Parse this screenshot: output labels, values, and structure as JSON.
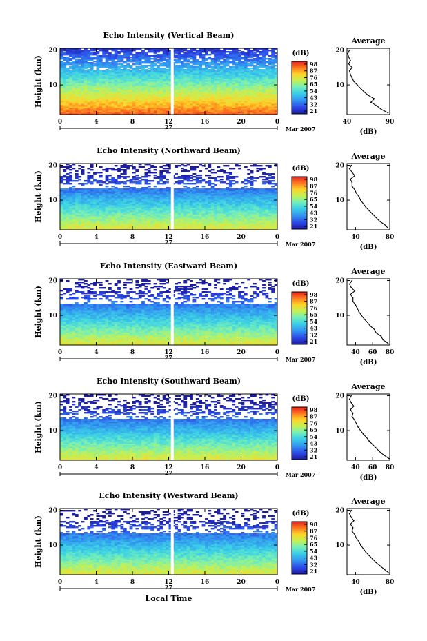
{
  "chart_data": [
    {
      "type": "heatmap",
      "title": "Echo Intensity (Vertical Beam)",
      "ylabel": "Height (km)",
      "xticks": [
        "0",
        "4",
        "8",
        "12",
        "16",
        "20",
        "0"
      ],
      "yticks": [
        "10",
        "20"
      ],
      "date_axis": {
        "day": "27",
        "month_label": "Mar 2007"
      },
      "colorbar": {
        "unit": "(dB)",
        "ticks": [
          "98",
          "87",
          "76",
          "65",
          "54",
          "43",
          "32",
          "21"
        ]
      },
      "xlim": [
        0,
        24
      ],
      "ylim": [
        1.5,
        20.5
      ],
      "gap_hour": 12.4,
      "profile": {
        "title": "Average",
        "xlabel": "(dB)",
        "xticks": [
          "40",
          "90"
        ],
        "xlim": [
          40,
          90
        ],
        "yticks": [
          "10",
          "20"
        ],
        "heights": [
          2,
          3,
          4,
          5,
          6,
          7,
          8,
          9,
          10,
          11,
          12,
          13,
          14,
          15,
          16,
          17,
          18,
          19,
          20
        ],
        "values": [
          88,
          80,
          75,
          68,
          72,
          65,
          60,
          56,
          52,
          48,
          46,
          44,
          43,
          46,
          42,
          44,
          42,
          41,
          43
        ]
      }
    },
    {
      "type": "heatmap",
      "title": "Echo Intensity (Northward Beam)",
      "ylabel": "Height (km)",
      "xticks": [
        "0",
        "4",
        "8",
        "12",
        "16",
        "20",
        "0"
      ],
      "yticks": [
        "10",
        "20"
      ],
      "date_axis": {
        "day": "27",
        "month_label": "Mar 2007"
      },
      "colorbar": {
        "unit": "(dB)",
        "ticks": [
          "98",
          "87",
          "76",
          "65",
          "54",
          "43",
          "32",
          "21"
        ]
      },
      "xlim": [
        0,
        24
      ],
      "ylim": [
        1.5,
        20.5
      ],
      "gap_hour": 12.4,
      "profile": {
        "title": "Average",
        "xlabel": "(dB)",
        "xticks": [
          "40",
          "80"
        ],
        "xlim": [
          30,
          80
        ],
        "yticks": [
          "10",
          "20"
        ],
        "heights": [
          2,
          3,
          4,
          5,
          6,
          7,
          8,
          9,
          10,
          11,
          12,
          13,
          14,
          15,
          16,
          17,
          18,
          19,
          20
        ],
        "values": [
          78,
          74,
          68,
          64,
          60,
          56,
          52,
          49,
          46,
          44,
          41,
          39,
          36,
          36,
          34,
          39,
          36,
          33,
          35
        ]
      }
    },
    {
      "type": "heatmap",
      "title": "Echo Intensity (Eastward Beam)",
      "ylabel": "Height (km)",
      "xticks": [
        "0",
        "4",
        "8",
        "12",
        "16",
        "20",
        "0"
      ],
      "yticks": [
        "10",
        "20"
      ],
      "date_axis": {
        "day": "27",
        "month_label": "Mar 2007"
      },
      "colorbar": {
        "unit": "(dB)",
        "ticks": [
          "98",
          "87",
          "76",
          "65",
          "54",
          "43",
          "32",
          "21"
        ]
      },
      "xlim": [
        0,
        24
      ],
      "ylim": [
        1.5,
        20.5
      ],
      "gap_hour": 12.4,
      "profile": {
        "title": "Average",
        "xlabel": "(dB)",
        "xticks": [
          "40",
          "60",
          "80"
        ],
        "xlim": [
          30,
          80
        ],
        "yticks": [
          "10",
          "20"
        ],
        "heights": [
          2,
          3,
          4,
          5,
          6,
          7,
          8,
          9,
          10,
          11,
          12,
          13,
          14,
          15,
          16,
          17,
          18,
          19,
          20
        ],
        "values": [
          78,
          72,
          70,
          64,
          62,
          57,
          54,
          50,
          47,
          44,
          42,
          40,
          37,
          37,
          34,
          39,
          35,
          33,
          36
        ]
      }
    },
    {
      "type": "heatmap",
      "title": "Echo Intensity (Southward Beam)",
      "ylabel": "Height (km)",
      "xticks": [
        "0",
        "4",
        "8",
        "12",
        "16",
        "20",
        "0"
      ],
      "yticks": [
        "10",
        "20"
      ],
      "date_axis": {
        "day": "27",
        "month_label": "Mar 2007"
      },
      "colorbar": {
        "unit": "(dB)",
        "ticks": [
          "98",
          "87",
          "76",
          "65",
          "54",
          "43",
          "32",
          "21"
        ]
      },
      "xlim": [
        0,
        24
      ],
      "ylim": [
        1.5,
        20.5
      ],
      "gap_hour": 12.4,
      "profile": {
        "title": "Average",
        "xlabel": "(dB)",
        "xticks": [
          "40",
          "60",
          "80"
        ],
        "xlim": [
          30,
          80
        ],
        "yticks": [
          "10",
          "20"
        ],
        "heights": [
          2,
          3,
          4,
          5,
          6,
          7,
          8,
          9,
          10,
          11,
          12,
          13,
          14,
          15,
          16,
          17,
          18,
          19,
          20
        ],
        "values": [
          79,
          73,
          68,
          64,
          60,
          56,
          53,
          49,
          46,
          43,
          41,
          39,
          36,
          37,
          34,
          38,
          35,
          33,
          35
        ]
      }
    },
    {
      "type": "heatmap",
      "title": "Echo Intensity (Westward Beam)",
      "ylabel": "Height (km)",
      "xlabel": "Local Time",
      "xticks": [
        "0",
        "4",
        "8",
        "12",
        "16",
        "20",
        "0"
      ],
      "yticks": [
        "10",
        "20"
      ],
      "date_axis": {
        "day": "27",
        "month_label": "Mar 2007"
      },
      "colorbar": {
        "unit": "(dB)",
        "ticks": [
          "98",
          "87",
          "76",
          "65",
          "54",
          "43",
          "32",
          "21"
        ]
      },
      "xlim": [
        0,
        24
      ],
      "ylim": [
        1.5,
        20.5
      ],
      "gap_hour": 12.4,
      "profile": {
        "title": "Average",
        "xlabel": "(dB)",
        "xticks": [
          "40",
          "80"
        ],
        "xlim": [
          30,
          80
        ],
        "yticks": [
          "10",
          "20"
        ],
        "heights": [
          2,
          3,
          4,
          5,
          6,
          7,
          8,
          9,
          10,
          11,
          12,
          13,
          14,
          15,
          16,
          17,
          18,
          19,
          20
        ],
        "values": [
          79,
          74,
          69,
          64,
          60,
          56,
          52,
          49,
          46,
          44,
          41,
          39,
          36,
          37,
          34,
          38,
          35,
          33,
          35
        ]
      }
    }
  ]
}
